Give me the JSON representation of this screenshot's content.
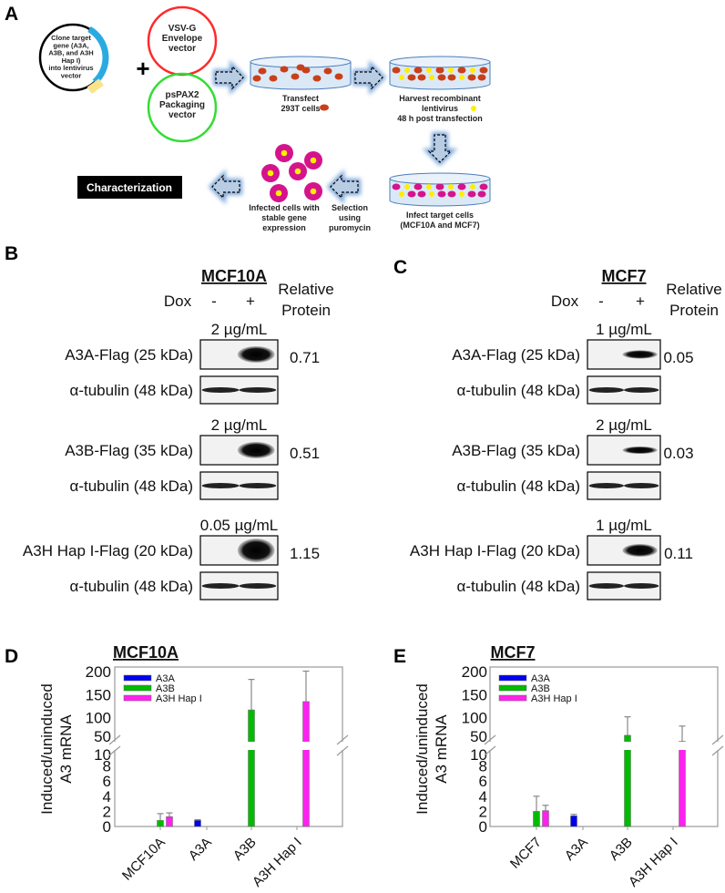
{
  "panels": {
    "a": "A",
    "b": "B",
    "c": "C",
    "d": "D",
    "e": "E"
  },
  "schematic": {
    "plasmid_text": [
      "Clone target",
      "gene (A3A,",
      "A3B, and A3H",
      "Hap I)",
      "into lentivirus",
      "vector"
    ],
    "plus": "+",
    "envelope": [
      "VSV-G",
      "Envelope",
      "vector"
    ],
    "packaging": [
      "psPAX2",
      "Packaging",
      "vector"
    ],
    "transfect": [
      "Transfect",
      "293T cells"
    ],
    "harvest": [
      "Harvest recombinant",
      "lentivirus",
      "48 h post transfection"
    ],
    "infect": [
      "Infect target cells",
      "(MCF10A and MCF7)"
    ],
    "selection": [
      "Selection",
      "using",
      "puromycin"
    ],
    "infected": [
      "Infected cells with",
      "stable gene",
      "expression"
    ],
    "characterization": "Characterization",
    "colors": {
      "envelope": "#ff2a2a",
      "packaging": "#33dd33",
      "producer_cell": "#c8401a",
      "lentivirus": "#ffee00",
      "target_cell": "#d4148c",
      "dish": "#dbe9f6",
      "arrow": "#b8cce4"
    }
  },
  "blots": [
    {
      "cell_line": "MCF10A",
      "dox_label": "Dox",
      "minus": "-",
      "plus": "+",
      "relative_protein": [
        "Relative",
        "Protein"
      ],
      "rows": [
        {
          "dose": "2 µg/mL",
          "target": "A3A-Flag (25 kDa)",
          "loading": "α-tubulin (48 kDa)",
          "relative": "0.71"
        },
        {
          "dose": "2 µg/mL",
          "target": "A3B-Flag (35 kDa)",
          "loading": "α-tubulin (48 kDa)",
          "relative": "0.51"
        },
        {
          "dose": "0.05 µg/mL",
          "target": "A3H Hap I-Flag (20 kDa)",
          "loading": "α-tubulin (48 kDa)",
          "relative": "1.15"
        }
      ]
    },
    {
      "cell_line": "MCF7",
      "dox_label": "Dox",
      "minus": "-",
      "plus": "+",
      "relative_protein": [
        "Relative",
        "Protein"
      ],
      "rows": [
        {
          "dose": "1 µg/mL",
          "target": "A3A-Flag (25 kDa)",
          "loading": "α-tubulin (48 kDa)",
          "relative": "0.05"
        },
        {
          "dose": "2 µg/mL",
          "target": "A3B-Flag (35 kDa)",
          "loading": "α-tubulin (48 kDa)",
          "relative": "0.03"
        },
        {
          "dose": "1 µg/mL",
          "target": "A3H Hap I-Flag (20 kDa)",
          "loading": "α-tubulin (48 kDa)",
          "relative": "0.11"
        }
      ]
    }
  ],
  "chart_data": [
    {
      "type": "bar",
      "title": "MCF10A",
      "ylabel": [
        "Induced/uninduced",
        "A3 mRNA"
      ],
      "xlabel": "",
      "categories": [
        "MCF10A",
        "A3A",
        "A3B",
        "A3H Hap I"
      ],
      "yticks_lower": [
        "0",
        "2",
        "4",
        "6",
        "8",
        "10"
      ],
      "yticks_upper": [
        "50",
        "100",
        "150",
        "200"
      ],
      "ylim": [
        0,
        200
      ],
      "axis_break": [
        10,
        50
      ],
      "legend": "top-left",
      "grid": false,
      "series": [
        {
          "name": "A3A",
          "color": "#0000ee",
          "values": [
            null,
            0.8,
            null,
            null
          ],
          "errors": [
            null,
            0.9,
            null,
            null
          ]
        },
        {
          "name": "A3B",
          "color": "#00bb00",
          "values": [
            0.8,
            null,
            117,
            null
          ],
          "errors": [
            1.7,
            null,
            183,
            null
          ]
        },
        {
          "name": "A3H Hap I",
          "color": "#ff22ee",
          "values": [
            1.3,
            null,
            null,
            135
          ],
          "errors": [
            1.8,
            null,
            null,
            201
          ]
        }
      ]
    },
    {
      "type": "bar",
      "title": "MCF7",
      "ylabel": [
        "Induced/uninduced",
        "A3 mRNA"
      ],
      "xlabel": "",
      "categories": [
        "MCF7",
        "A3A",
        "A3B",
        "A3H Hap I"
      ],
      "yticks_lower": [
        "0",
        "2",
        "4",
        "6",
        "8",
        "10"
      ],
      "yticks_upper": [
        "50",
        "100",
        "150",
        "200"
      ],
      "ylim": [
        0,
        200
      ],
      "axis_break": [
        10,
        50
      ],
      "legend": "top-left",
      "grid": false,
      "series": [
        {
          "name": "A3A",
          "color": "#0000ee",
          "values": [
            null,
            1.4,
            null,
            null
          ],
          "errors": [
            null,
            1.6,
            null,
            null
          ]
        },
        {
          "name": "A3B",
          "color": "#00bb00",
          "values": [
            2.0,
            null,
            62,
            null
          ],
          "errors": [
            4.0,
            null,
            102,
            null
          ]
        },
        {
          "name": "A3H Hap I",
          "color": "#ff22ee",
          "values": [
            2.1,
            null,
            null,
            48
          ],
          "errors": [
            2.8,
            null,
            null,
            82
          ]
        }
      ]
    }
  ]
}
